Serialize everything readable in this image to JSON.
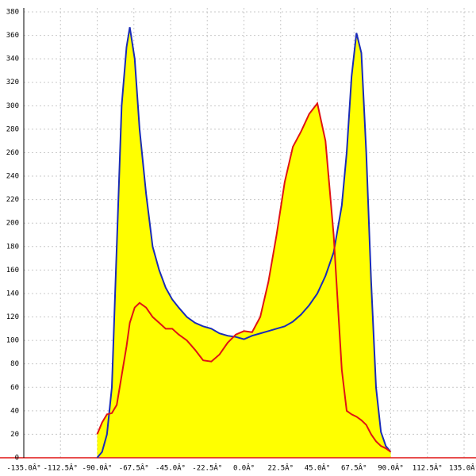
{
  "chart_data": {
    "type": "area",
    "grid": true,
    "x": [
      -90,
      -87,
      -84,
      -81,
      -78,
      -75,
      -72,
      -70,
      -67,
      -64,
      -60,
      -56,
      -52,
      -48,
      -44,
      -40,
      -35,
      -30,
      -25,
      -20,
      -15,
      -10,
      -5,
      0,
      5,
      10,
      15,
      20,
      25,
      30,
      35,
      40,
      45,
      50,
      55,
      60,
      63,
      66,
      69,
      72,
      75,
      78,
      81,
      84,
      87,
      90
    ],
    "series": [
      {
        "color": "#1a2bb8",
        "fill": "#ffff00",
        "values": [
          0,
          5,
          20,
          60,
          180,
          300,
          350,
          367,
          340,
          280,
          225,
          180,
          160,
          145,
          135,
          128,
          120,
          115,
          112,
          110,
          106,
          104,
          103,
          101,
          104,
          106,
          108,
          110,
          112,
          116,
          122,
          130,
          140,
          155,
          175,
          215,
          260,
          325,
          362,
          345,
          260,
          150,
          60,
          22,
          10,
          5
        ]
      },
      {
        "color": "#e01414",
        "fill": "#ffff00",
        "values": [
          20,
          30,
          37,
          38,
          45,
          70,
          95,
          115,
          128,
          132,
          128,
          120,
          115,
          110,
          110,
          105,
          100,
          92,
          83,
          82,
          88,
          98,
          105,
          108,
          107,
          120,
          150,
          190,
          235,
          265,
          278,
          293,
          302,
          270,
          190,
          75,
          40,
          37,
          35,
          32,
          28,
          20,
          14,
          10,
          8,
          5
        ]
      }
    ],
    "xlim": [
      -135,
      135
    ],
    "xticks": [
      {
        "value": -135,
        "label": "-135.0Â°"
      },
      {
        "value": -112.5,
        "label": "-112.5Â°"
      },
      {
        "value": -90,
        "label": "-90.0Â°"
      },
      {
        "value": -67.5,
        "label": "-67.5Â°"
      },
      {
        "value": -45,
        "label": "-45.0Â°"
      },
      {
        "value": -22.5,
        "label": "-22.5Â°"
      },
      {
        "value": 0,
        "label": "0.0Â°"
      },
      {
        "value": 22.5,
        "label": "22.5Â°"
      },
      {
        "value": 45,
        "label": "45.0Â°"
      },
      {
        "value": 67.5,
        "label": "67.5Â°"
      },
      {
        "value": 90,
        "label": "90.0Â°"
      },
      {
        "value": 112.5,
        "label": "112.5Â°"
      },
      {
        "value": 135,
        "label": "135.0Â°"
      }
    ],
    "ylim": [
      0,
      380
    ],
    "yticks": [
      0,
      20,
      40,
      60,
      80,
      100,
      120,
      140,
      160,
      180,
      200,
      220,
      240,
      260,
      280,
      300,
      320,
      340,
      360,
      380
    ]
  }
}
